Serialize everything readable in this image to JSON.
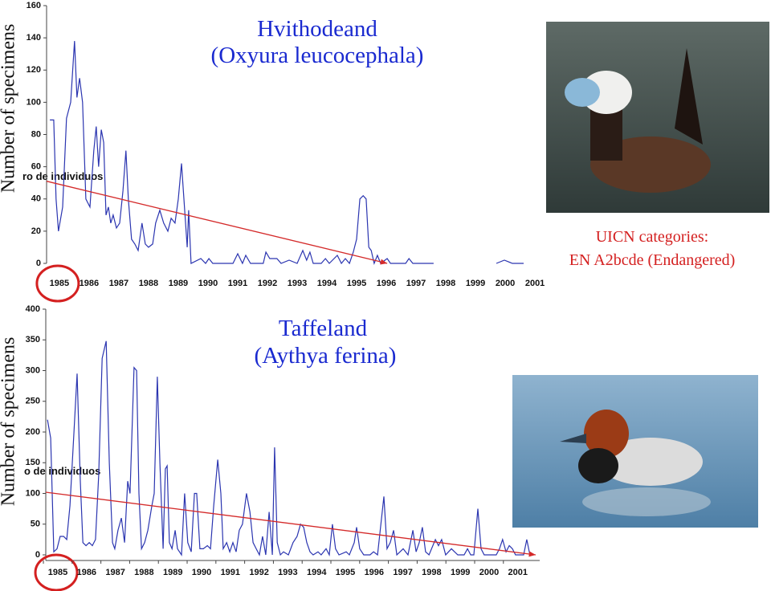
{
  "chart_data": [
    {
      "type": "line",
      "title": "Hvithodeand",
      "subtitle": "(Oxyura leucocephala)",
      "y_label": "Number of specimens",
      "annotations": [
        "ro de individuos",
        "UICN categories:",
        "EN A2bcde (Endangered)"
      ],
      "xlim": [
        1984.57,
        2001.16
      ],
      "xticks": [
        1985,
        1986,
        1987,
        1988,
        1989,
        1990,
        1991,
        1992,
        1993,
        1994,
        1995,
        1996,
        1997,
        1998,
        1999,
        2000,
        2001
      ],
      "ylim": [
        0,
        160
      ],
      "yticks": [
        0,
        20,
        40,
        60,
        80,
        100,
        120,
        140,
        160
      ],
      "color": "#2b35b0",
      "x": [
        1984.68,
        1984.81,
        1984.89,
        1984.97,
        1985.11,
        1985.24,
        1985.38,
        1985.51,
        1985.59,
        1985.68,
        1985.78,
        1985.89,
        1986.03,
        1986.16,
        1986.24,
        1986.32,
        1986.41,
        1986.49,
        1986.57,
        1986.65,
        1986.73,
        1986.81,
        1986.92,
        1987.03,
        1987.14,
        1987.24,
        1987.32,
        1987.43,
        1987.54,
        1987.65,
        1987.78,
        1987.89,
        1988.0,
        1988.14,
        1988.24,
        1988.38,
        1988.51,
        1988.65,
        1988.76,
        1988.89,
        1989.0,
        1989.11,
        1989.19,
        1989.3,
        1989.35,
        1989.43,
        1989.76,
        1989.92,
        1990.03,
        1990.16,
        1990.84,
        1991.0,
        1991.16,
        1991.27,
        1991.43,
        1991.86,
        1991.95,
        1992.08,
        1992.32,
        1992.46,
        1992.73,
        1993.0,
        1993.19,
        1993.32,
        1993.43,
        1993.54,
        1993.81,
        1993.95,
        1994.08,
        1994.35,
        1994.49,
        1994.62,
        1994.76,
        1994.89,
        1995.0,
        1995.11,
        1995.22,
        1995.32,
        1995.41,
        1995.49,
        1995.59,
        1995.7,
        1995.81,
        1996.03,
        1996.14,
        1996.65,
        1996.76,
        1996.89,
        1997.59,
        1998.6,
        1999.7,
        1999.97,
        2000.24,
        2000.62
      ],
      "values": [
        89,
        89,
        40,
        20,
        35,
        90,
        100,
        138,
        103,
        115,
        100,
        40,
        35,
        70,
        85,
        60,
        83,
        75,
        30,
        35,
        25,
        30,
        22,
        25,
        45,
        70,
        40,
        15,
        12,
        8,
        25,
        12,
        10,
        12,
        25,
        33,
        25,
        20,
        28,
        25,
        40,
        62,
        40,
        10,
        33,
        0,
        3,
        0,
        3,
        0,
        0,
        6,
        0,
        5,
        0,
        0,
        7,
        3,
        3,
        0,
        2,
        0,
        8,
        2,
        7,
        0,
        0,
        3,
        0,
        5,
        0,
        3,
        0,
        7,
        15,
        40,
        42,
        40,
        10,
        8,
        0,
        5,
        0,
        3,
        0,
        0,
        3,
        0,
        0,
        null,
        0,
        2,
        0,
        0
      ],
      "trend": {
        "color": "#d42a2a",
        "x": [
          1984.57,
          1996.03
        ],
        "values": [
          51,
          0
        ]
      }
    },
    {
      "type": "line",
      "title": "Taffeland",
      "subtitle": "(Aythya ferina)",
      "y_label": "Number of specimens",
      "annotations": [
        "o de individuos"
      ],
      "xlim": [
        1984.58,
        2001.76
      ],
      "xticks": [
        1985,
        1986,
        1987,
        1988,
        1989,
        1990,
        1991,
        1992,
        1993,
        1994,
        1995,
        1996,
        1997,
        1998,
        1999,
        2000,
        2001
      ],
      "ylim": [
        0,
        400
      ],
      "yticks": [
        0,
        50,
        100,
        150,
        200,
        250,
        300,
        350,
        400
      ],
      "color": "#2b35b0",
      "x": [
        1984.64,
        1984.75,
        1984.86,
        1984.97,
        1985.08,
        1985.2,
        1985.31,
        1985.42,
        1985.56,
        1985.67,
        1985.78,
        1985.87,
        1985.98,
        1986.09,
        1986.2,
        1986.31,
        1986.42,
        1986.54,
        1986.68,
        1986.79,
        1986.9,
        1986.98,
        1987.09,
        1987.21,
        1987.32,
        1987.43,
        1987.51,
        1987.65,
        1987.74,
        1987.82,
        1987.91,
        1988.02,
        1988.13,
        1988.27,
        1988.35,
        1988.46,
        1988.55,
        1988.66,
        1988.74,
        1988.8,
        1988.88,
        1988.97,
        1989.08,
        1989.16,
        1989.3,
        1989.41,
        1989.52,
        1989.64,
        1989.75,
        1989.83,
        1989.94,
        1990.06,
        1990.2,
        1990.31,
        1990.42,
        1990.56,
        1990.67,
        1990.75,
        1990.87,
        1990.98,
        1991.09,
        1991.2,
        1991.31,
        1991.42,
        1991.56,
        1991.68,
        1991.79,
        1991.9,
        1992.01,
        1992.12,
        1992.23,
        1992.35,
        1992.46,
        1992.54,
        1992.63,
        1992.74,
        1992.85,
        1993.02,
        1993.18,
        1993.32,
        1993.44,
        1993.55,
        1993.66,
        1993.77,
        1993.88,
        1994.05,
        1994.16,
        1994.33,
        1994.44,
        1994.55,
        1994.66,
        1994.78,
        1995.03,
        1995.14,
        1995.31,
        1995.39,
        1995.5,
        1995.64,
        1995.86,
        1995.98,
        1996.12,
        1996.34,
        1996.45,
        1996.56,
        1996.68,
        1996.79,
        1997.01,
        1997.18,
        1997.35,
        1997.46,
        1997.57,
        1997.68,
        1997.79,
        1997.91,
        1998.13,
        1998.24,
        1998.35,
        1998.49,
        1998.69,
        1998.91,
        1999.13,
        1999.25,
        1999.36,
        1999.47,
        1999.61,
        1999.72,
        1999.83,
        2000.25,
        2000.36,
        2000.47,
        2000.59,
        2000.7,
        2000.81,
        2000.92,
        2001.2,
        2001.31,
        2001.42
      ],
      "values": [
        220,
        190,
        5,
        10,
        30,
        30,
        25,
        80,
        200,
        295,
        120,
        20,
        15,
        20,
        15,
        25,
        130,
        320,
        348,
        150,
        20,
        10,
        40,
        60,
        20,
        120,
        100,
        305,
        300,
        100,
        10,
        20,
        40,
        80,
        100,
        290,
        150,
        10,
        140,
        145,
        20,
        10,
        40,
        10,
        0,
        100,
        20,
        5,
        100,
        100,
        10,
        10,
        15,
        10,
        80,
        155,
        100,
        10,
        20,
        5,
        20,
        5,
        40,
        50,
        100,
        70,
        20,
        10,
        0,
        30,
        0,
        70,
        0,
        175,
        20,
        0,
        5,
        0,
        20,
        30,
        50,
        45,
        20,
        5,
        0,
        5,
        0,
        10,
        0,
        50,
        10,
        0,
        5,
        0,
        20,
        45,
        10,
        0,
        0,
        5,
        0,
        95,
        10,
        20,
        40,
        0,
        10,
        0,
        40,
        5,
        20,
        45,
        5,
        0,
        25,
        15,
        25,
        0,
        10,
        0,
        0,
        10,
        0,
        0,
        75,
        10,
        0,
        0,
        10,
        25,
        5,
        15,
        10,
        0,
        0,
        25,
        0
      ],
      "trend": {
        "color": "#d42a2a",
        "x": [
          1984.58,
          2001.62
        ],
        "values": [
          102,
          0
        ]
      }
    }
  ]
}
